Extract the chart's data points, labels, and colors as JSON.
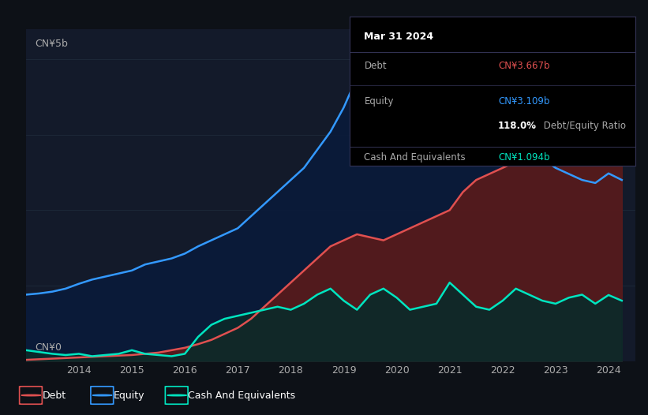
{
  "bg_color": "#0d1117",
  "plot_bg_color": "#131a2a",
  "ylabel": "CN¥5b",
  "y0_label": "CN¥0",
  "xlim_start": 2013.0,
  "xlim_end": 2024.5,
  "ylim": [
    0,
    5.5
  ],
  "grid_color": "#1e2a3a",
  "debt_color": "#e05050",
  "equity_color": "#3399ff",
  "cash_color": "#00e5c0",
  "debt_fill": "#5a1a1a",
  "equity_fill": "#0a1a3a",
  "cash_fill": "#0a2a2a",
  "tooltip_bg": "#000000",
  "tooltip_border": "#333355",
  "tooltip_title": "Mar 31 2024",
  "tooltip_debt_label": "Debt",
  "tooltip_debt_value": "CN¥3.667b",
  "tooltip_equity_label": "Equity",
  "tooltip_equity_value": "CN¥3.109b",
  "tooltip_ratio_bold": "118.0%",
  "tooltip_ratio_rest": " Debt/Equity Ratio",
  "tooltip_cash_label": "Cash And Equivalents",
  "tooltip_cash_value": "CN¥1.094b",
  "legend_debt": "Debt",
  "legend_equity": "Equity",
  "legend_cash": "Cash And Equivalents",
  "x_ticks": [
    2014,
    2015,
    2016,
    2017,
    2018,
    2019,
    2020,
    2021,
    2022,
    2023,
    2024
  ],
  "equity_x": [
    2013.0,
    2013.25,
    2013.5,
    2013.75,
    2014.0,
    2014.25,
    2014.5,
    2014.75,
    2015.0,
    2015.25,
    2015.5,
    2015.75,
    2016.0,
    2016.25,
    2016.5,
    2016.75,
    2017.0,
    2017.25,
    2017.5,
    2017.75,
    2018.0,
    2018.25,
    2018.5,
    2018.75,
    2019.0,
    2019.25,
    2019.5,
    2019.75,
    2020.0,
    2020.25,
    2020.5,
    2020.75,
    2021.0,
    2021.25,
    2021.5,
    2021.75,
    2022.0,
    2022.25,
    2022.5,
    2022.75,
    2023.0,
    2023.25,
    2023.5,
    2023.75,
    2024.0,
    2024.25
  ],
  "equity_y": [
    1.1,
    1.12,
    1.15,
    1.2,
    1.28,
    1.35,
    1.4,
    1.45,
    1.5,
    1.6,
    1.65,
    1.7,
    1.78,
    1.9,
    2.0,
    2.1,
    2.2,
    2.4,
    2.6,
    2.8,
    3.0,
    3.2,
    3.5,
    3.8,
    4.2,
    4.7,
    4.5,
    4.0,
    3.6,
    3.5,
    3.4,
    3.45,
    3.8,
    3.85,
    3.8,
    3.75,
    3.6,
    3.5,
    3.4,
    3.35,
    3.2,
    3.1,
    3.0,
    2.95,
    3.109,
    3.0
  ],
  "debt_x": [
    2013.0,
    2013.25,
    2013.5,
    2013.75,
    2014.0,
    2014.25,
    2014.5,
    2014.75,
    2015.0,
    2015.25,
    2015.5,
    2015.75,
    2016.0,
    2016.25,
    2016.5,
    2016.75,
    2017.0,
    2017.25,
    2017.5,
    2017.75,
    2018.0,
    2018.25,
    2018.5,
    2018.75,
    2019.0,
    2019.25,
    2019.5,
    2019.75,
    2020.0,
    2020.25,
    2020.5,
    2020.75,
    2021.0,
    2021.25,
    2021.5,
    2021.75,
    2022.0,
    2022.25,
    2022.5,
    2022.75,
    2023.0,
    2023.25,
    2023.5,
    2023.75,
    2024.0,
    2024.25
  ],
  "debt_y": [
    0.02,
    0.03,
    0.04,
    0.05,
    0.06,
    0.07,
    0.08,
    0.09,
    0.1,
    0.12,
    0.14,
    0.18,
    0.22,
    0.28,
    0.35,
    0.45,
    0.55,
    0.7,
    0.9,
    1.1,
    1.3,
    1.5,
    1.7,
    1.9,
    2.0,
    2.1,
    2.05,
    2.0,
    2.1,
    2.2,
    2.3,
    2.4,
    2.5,
    2.8,
    3.0,
    3.1,
    3.2,
    3.3,
    3.4,
    3.5,
    3.6,
    3.5,
    3.45,
    3.55,
    3.667,
    3.6
  ],
  "cash_x": [
    2013.0,
    2013.25,
    2013.5,
    2013.75,
    2014.0,
    2014.25,
    2014.5,
    2014.75,
    2015.0,
    2015.25,
    2015.5,
    2015.75,
    2016.0,
    2016.25,
    2016.5,
    2016.75,
    2017.0,
    2017.25,
    2017.5,
    2017.75,
    2018.0,
    2018.25,
    2018.5,
    2018.75,
    2019.0,
    2019.25,
    2019.5,
    2019.75,
    2020.0,
    2020.25,
    2020.5,
    2020.75,
    2021.0,
    2021.25,
    2021.5,
    2021.75,
    2022.0,
    2022.25,
    2022.5,
    2022.75,
    2023.0,
    2023.25,
    2023.5,
    2023.75,
    2024.0,
    2024.25
  ],
  "cash_y": [
    0.18,
    0.15,
    0.12,
    0.1,
    0.12,
    0.08,
    0.1,
    0.12,
    0.18,
    0.12,
    0.1,
    0.08,
    0.12,
    0.4,
    0.6,
    0.7,
    0.75,
    0.8,
    0.85,
    0.9,
    0.85,
    0.95,
    1.1,
    1.2,
    1.0,
    0.85,
    1.1,
    1.2,
    1.05,
    0.85,
    0.9,
    0.95,
    1.3,
    1.1,
    0.9,
    0.85,
    1.0,
    1.2,
    1.1,
    1.0,
    0.95,
    1.05,
    1.1,
    0.95,
    1.094,
    1.0
  ]
}
